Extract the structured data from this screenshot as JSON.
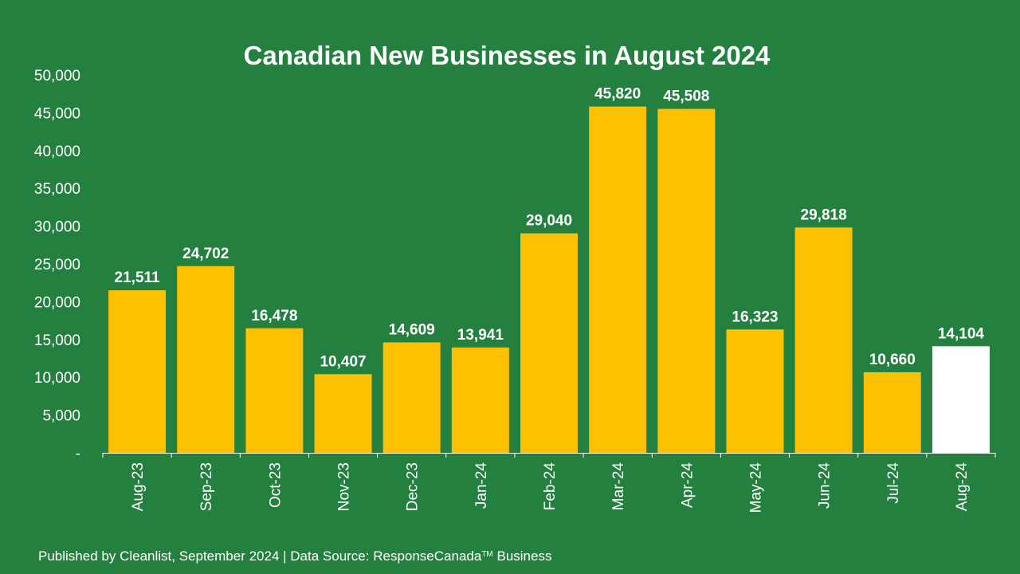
{
  "chart_data": {
    "type": "bar",
    "title": "Canadian New Businesses in August 2024",
    "categories": [
      "Aug-23",
      "Sep-23",
      "Oct-23",
      "Nov-23",
      "Dec-23",
      "Jan-24",
      "Feb-24",
      "Mar-24",
      "Apr-24",
      "May-24",
      "Jun-24",
      "Jul-24",
      "Aug-24"
    ],
    "values": [
      21511,
      24702,
      16478,
      10407,
      14609,
      13941,
      29040,
      45820,
      45508,
      16323,
      29818,
      10660,
      14104
    ],
    "data_labels": [
      "21,511",
      "24,702",
      "16,478",
      "10,407",
      "14,609",
      "13,941",
      "29,040",
      "45,820",
      "45,508",
      "16,323",
      "29,818",
      "10,660",
      "14,104"
    ],
    "ylim": [
      0,
      50000
    ],
    "yticks": [
      0,
      5000,
      10000,
      15000,
      20000,
      25000,
      30000,
      35000,
      40000,
      45000,
      50000
    ],
    "ytick_labels": [
      "-",
      "5,000",
      "10,000",
      "15,000",
      "20,000",
      "25,000",
      "30,000",
      "35,000",
      "40,000",
      "45,000",
      "50,000"
    ],
    "xlabel": "",
    "ylabel": "",
    "grid": false,
    "highlight_index": 12,
    "colors": {
      "background": "#24803f",
      "bar": "#ffc000",
      "highlight_bar": "#ffffff",
      "text": "#ffffff",
      "axis": "#ffffff"
    }
  },
  "footer": {
    "prefix": "Published by Cleanlist, September 2024 | Data Source: ResponseCanada",
    "trademark": "TM",
    "suffix": " Business"
  }
}
